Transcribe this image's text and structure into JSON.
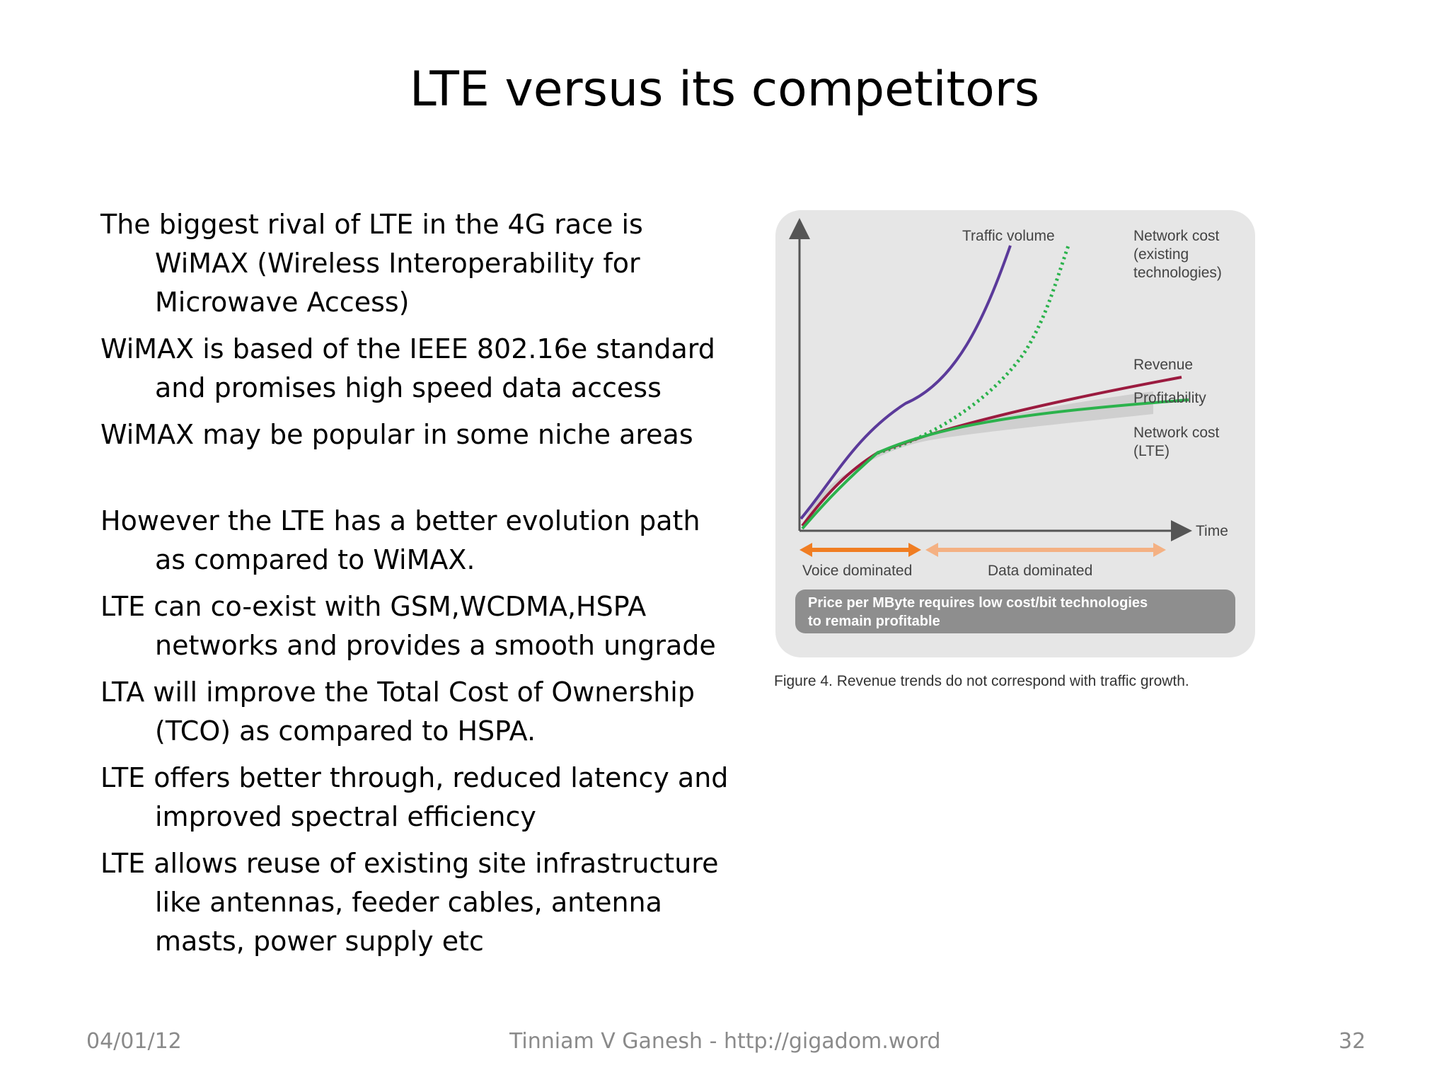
{
  "slide": {
    "title": "LTE versus its competitors",
    "paragraphs": [
      "The biggest rival of LTE in the 4G race is WiMAX (Wireless Interoperability for Microwave Access)",
      "WiMAX is based of the IEEE 802.16e standard and promises high speed data access",
      "WiMAX may be popular in some niche areas",
      "However the LTE has a better evolution path as compared to WiMAX.",
      "LTE can co-exist with GSM,WCDMA,HSPA networks and provides a smooth ungrade",
      "LTA will improve the Total Cost of Ownership (TCO) as compared to HSPA.",
      "LTE offers better through, reduced latency and improved spectral efficiency",
      "LTE allows reuse of existing site infrastructure like antennas,  feeder cables, antenna masts,  power supply etc"
    ]
  },
  "figure": {
    "labels": {
      "traffic_volume": "Traffic volume",
      "network_cost_existing": [
        "Network cost",
        "(existing",
        "technologies)"
      ],
      "revenue": "Revenue",
      "profitability": "Profitability",
      "network_cost_lte": [
        "Network cost",
        "(LTE)"
      ],
      "time": "Time",
      "voice_dominated": "Voice dominated",
      "data_dominated": "Data dominated",
      "price_note": [
        "Price per MByte requires low cost/bit technologies",
        "to remain profitable"
      ]
    },
    "caption": "Figure 4. Revenue trends do not correspond with traffic growth.",
    "colors": {
      "traffic": "#5b3a9a",
      "network_existing": "#2bb24c",
      "revenue": "#9b1b3f",
      "network_lte": "#2bb24c",
      "voice_arrow": "#f07d22",
      "data_arrow": "#f4b183",
      "panel": "#e6e6e6",
      "note_box": "#8e8e8e"
    }
  },
  "footer": {
    "date": "04/01/12",
    "author": "Tinniam V Ganesh - http://gigadom.wordpress.com",
    "page": "32"
  }
}
